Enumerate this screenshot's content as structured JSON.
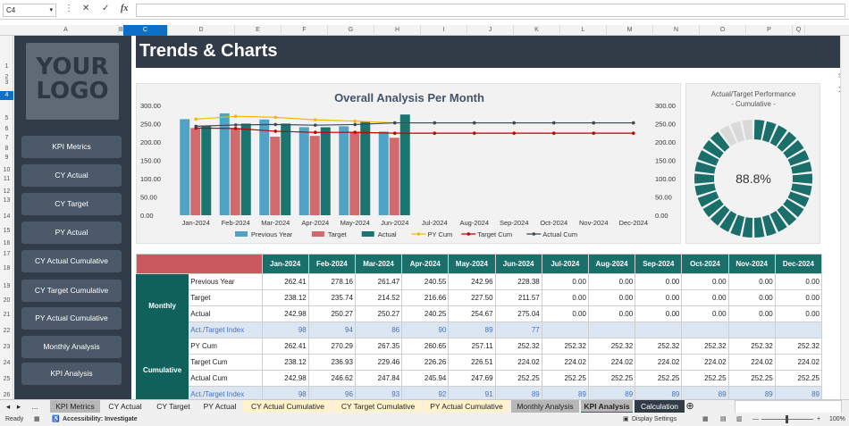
{
  "formula_bar": {
    "cell_ref": "C4",
    "fx": "fx",
    "cancel": "✕",
    "enter": "✓"
  },
  "columns": [
    "A",
    "B",
    "C",
    "D",
    "E",
    "F",
    "G",
    "H",
    "I",
    "J",
    "K",
    "L",
    "M",
    "N",
    "O",
    "P",
    "Q"
  ],
  "selected_column": "C",
  "rows": [
    "1",
    "2",
    "3",
    "4",
    "5",
    "6",
    "7",
    "8",
    "9",
    "10",
    "11",
    "12",
    "13",
    "14",
    "15",
    "16",
    "17",
    "18",
    "19",
    "20",
    "21",
    "22",
    "23",
    "24",
    "25",
    "26"
  ],
  "selected_row": "4",
  "logo": {
    "line1": "YOUR",
    "line2": "LOGO"
  },
  "nav": [
    "KPI Metrics",
    "CY Actual",
    "CY Target",
    "PY Actual",
    "CY Actual Cumulative",
    "CY Target Cumulative",
    "PY Actual Cumulative",
    "Monthly Analysis",
    "KPI Analysis"
  ],
  "page_title": "Trends & Charts",
  "side_note": "Se",
  "side_value": "1",
  "chart_data": {
    "type": "bar",
    "title": "Overall Analysis Per Month",
    "categories": [
      "Jan-2024",
      "Feb-2024",
      "Mar-2024",
      "Apr-2024",
      "May-2024",
      "Jun-2024",
      "Jul-2024",
      "Aug-2024",
      "Sep-2024",
      "Oct-2024",
      "Nov-2024",
      "Dec-2024"
    ],
    "ylim": [
      0,
      300
    ],
    "yticks": [
      "300.00",
      "250.00",
      "200.00",
      "150.00",
      "100.00",
      "50.00",
      "0.00"
    ],
    "series": [
      {
        "name": "Previous Year",
        "kind": "bar",
        "color": "#4fa3c7",
        "values": [
          262.41,
          278.16,
          261.47,
          240.55,
          242.96,
          228.38,
          0,
          0,
          0,
          0,
          0,
          0
        ]
      },
      {
        "name": "Target",
        "kind": "bar",
        "color": "#d16a6c",
        "values": [
          238.12,
          235.74,
          214.52,
          216.66,
          227.5,
          211.57,
          0,
          0,
          0,
          0,
          0,
          0
        ]
      },
      {
        "name": "Actual",
        "kind": "bar",
        "color": "#1a7470",
        "values": [
          242.98,
          250.27,
          250.27,
          240.25,
          254.67,
          275.04,
          0,
          0,
          0,
          0,
          0,
          0
        ]
      },
      {
        "name": "PY Cum",
        "kind": "line",
        "color": "#f5b800",
        "values": [
          262.41,
          270.29,
          267.35,
          260.65,
          257.11,
          252.32,
          252.32,
          252.32,
          252.32,
          252.32,
          252.32,
          252.32
        ]
      },
      {
        "name": "Target Cum",
        "kind": "line",
        "color": "#c00000",
        "values": [
          238.12,
          236.93,
          229.46,
          226.26,
          226.51,
          224.02,
          224.02,
          224.02,
          224.02,
          224.02,
          224.02,
          224.02
        ]
      },
      {
        "name": "Actual Cum",
        "kind": "line",
        "color": "#3a4a5a",
        "values": [
          242.98,
          246.62,
          247.84,
          245.94,
          247.69,
          252.25,
          252.25,
          252.25,
          252.25,
          252.25,
          252.25,
          252.25
        ]
      }
    ]
  },
  "gauge": {
    "title_line1": "Actual/Target Performance",
    "title_line2": "- Cumulative -",
    "value_text": "88.8%",
    "value": 0.888,
    "color": "#1a6f6b",
    "rest_color": "#d9d9d9"
  },
  "table": {
    "months": [
      "Jan-2024",
      "Feb-2024",
      "Mar-2024",
      "Apr-2024",
      "May-2024",
      "Jun-2024",
      "Jul-2024",
      "Aug-2024",
      "Sep-2024",
      "Oct-2024",
      "Nov-2024",
      "Dec-2024"
    ],
    "groups": [
      {
        "name": "Monthly",
        "rows": [
          {
            "label": "Previous Year",
            "values": [
              "262.41",
              "278.16",
              "261.47",
              "240.55",
              "242.96",
              "228.38",
              "0.00",
              "0.00",
              "0.00",
              "0.00",
              "0.00",
              "0.00"
            ]
          },
          {
            "label": "Target",
            "values": [
              "238.12",
              "235.74",
              "214.52",
              "216.66",
              "227.50",
              "211.57",
              "0.00",
              "0.00",
              "0.00",
              "0.00",
              "0.00",
              "0.00"
            ]
          },
          {
            "label": "Actual",
            "values": [
              "242.98",
              "250.27",
              "250.27",
              "240.25",
              "254.67",
              "275.04",
              "0.00",
              "0.00",
              "0.00",
              "0.00",
              "0.00",
              "0.00"
            ]
          },
          {
            "label": "Act./Target Index",
            "index": true,
            "values": [
              "98",
              "94",
              "86",
              "90",
              "89",
              "77",
              "",
              "",
              "",
              "",
              "",
              ""
            ]
          }
        ]
      },
      {
        "name": "Cumulative",
        "rows": [
          {
            "label": "PY Cum",
            "values": [
              "262.41",
              "270.29",
              "267.35",
              "260.65",
              "257.11",
              "252.32",
              "252.32",
              "252.32",
              "252.32",
              "252.32",
              "252.32",
              "252.32"
            ]
          },
          {
            "label": "Target Cum",
            "values": [
              "238.12",
              "236.93",
              "229.46",
              "226.26",
              "226.51",
              "224.02",
              "224.02",
              "224.02",
              "224.02",
              "224.02",
              "224.02",
              "224.02"
            ]
          },
          {
            "label": "Actual Cum",
            "values": [
              "242.98",
              "246.62",
              "247.84",
              "245.94",
              "247.69",
              "252.25",
              "252.25",
              "252.25",
              "252.25",
              "252.25",
              "252.25",
              "252.25"
            ]
          },
          {
            "label": "Act./Target Index",
            "index": true,
            "values": [
              "98",
              "96",
              "93",
              "92",
              "91",
              "89",
              "89",
              "89",
              "89",
              "89",
              "89",
              "89"
            ]
          }
        ]
      }
    ]
  },
  "sheet_tabs": [
    {
      "label": "KPI Metrics",
      "bg": "#b7b7b7"
    },
    {
      "label": "CY Actual",
      "bg": "#f0f0f0"
    },
    {
      "label": "CY Target",
      "bg": "#f0f0f0"
    },
    {
      "label": "PY Actual",
      "bg": "#f0f0f0"
    },
    {
      "label": "CY Actual Cumulative",
      "bg": "#fff2cc"
    },
    {
      "label": "CY Target Cumulative",
      "bg": "#fff2cc"
    },
    {
      "label": "PY Actual Cumulative",
      "bg": "#fff2cc"
    },
    {
      "label": "Monthly Analysis",
      "bg": "#b7b7b7"
    },
    {
      "label": "KPI Analysis",
      "bg": "#b7b7b7",
      "active": true
    },
    {
      "label": "Calculation",
      "bg": "#313c48",
      "fg": "#ffffff"
    }
  ],
  "tab_nav": {
    "prev": "◂",
    "next": "▸",
    "more": "...",
    "add": "⊕"
  },
  "status": {
    "ready": "Ready",
    "accessibility": "Accessibility: Investigate",
    "display_settings": "Display Settings",
    "zoom": "100%"
  }
}
